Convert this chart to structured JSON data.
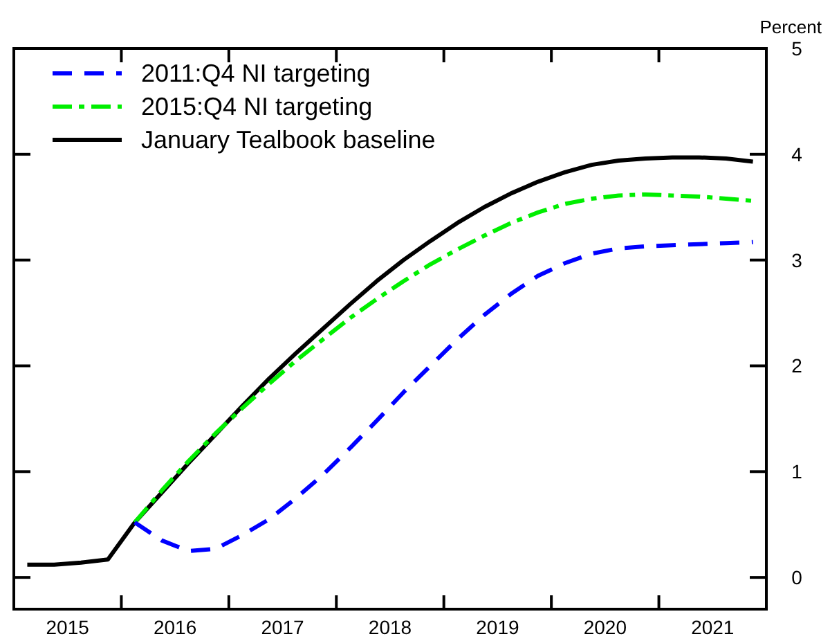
{
  "chart_data": {
    "type": "line",
    "ylabel": "Percent",
    "x": [
      2015.125,
      2015.375,
      2015.625,
      2015.875,
      2016.125,
      2016.375,
      2016.625,
      2016.875,
      2017.125,
      2017.375,
      2017.625,
      2017.875,
      2018.125,
      2018.375,
      2018.625,
      2018.875,
      2019.125,
      2019.375,
      2019.625,
      2019.875,
      2020.125,
      2020.375,
      2020.625,
      2020.875,
      2021.125,
      2021.375,
      2021.625,
      2021.875
    ],
    "series": [
      {
        "name": "2011:Q4 NI targeting",
        "color": "#0000ff",
        "line_style": "dashed",
        "values": [
          null,
          null,
          null,
          null,
          0.52,
          0.35,
          0.25,
          0.27,
          0.4,
          0.55,
          0.75,
          0.97,
          1.22,
          1.48,
          1.75,
          2.0,
          2.25,
          2.48,
          2.68,
          2.85,
          2.97,
          3.06,
          3.11,
          3.13,
          3.14,
          3.15,
          3.16,
          3.17
        ]
      },
      {
        "name": "2015:Q4 NI targeting",
        "color": "#00ee00",
        "line_style": "dashdot",
        "values": [
          null,
          null,
          null,
          null,
          0.52,
          0.82,
          1.1,
          1.36,
          1.6,
          1.83,
          2.05,
          2.25,
          2.45,
          2.63,
          2.8,
          2.96,
          3.1,
          3.23,
          3.35,
          3.45,
          3.53,
          3.58,
          3.61,
          3.62,
          3.61,
          3.6,
          3.58,
          3.56
        ]
      },
      {
        "name": "January Tealbook baseline",
        "color": "#000000",
        "line_style": "solid",
        "values": [
          0.12,
          0.12,
          0.14,
          0.17,
          0.52,
          0.8,
          1.08,
          1.35,
          1.62,
          1.88,
          2.12,
          2.35,
          2.58,
          2.8,
          3.0,
          3.18,
          3.35,
          3.5,
          3.63,
          3.74,
          3.83,
          3.9,
          3.94,
          3.96,
          3.97,
          3.97,
          3.96,
          3.93
        ]
      }
    ],
    "xlim": [
      2015,
      2022
    ],
    "xticks": [
      {
        "value": 2015,
        "label": null
      },
      {
        "value": 2015.5,
        "label": "2015"
      },
      {
        "value": 2016,
        "label": null
      },
      {
        "value": 2016.5,
        "label": "2016"
      },
      {
        "value": 2017,
        "label": null
      },
      {
        "value": 2017.5,
        "label": "2017"
      },
      {
        "value": 2018,
        "label": null
      },
      {
        "value": 2018.5,
        "label": "2018"
      },
      {
        "value": 2019,
        "label": null
      },
      {
        "value": 2019.5,
        "label": "2019"
      },
      {
        "value": 2020,
        "label": null
      },
      {
        "value": 2020.5,
        "label": "2020"
      },
      {
        "value": 2021,
        "label": null
      },
      {
        "value": 2021.5,
        "label": "2021"
      },
      {
        "value": 2022,
        "label": null
      }
    ],
    "ylim": [
      -0.3,
      5
    ],
    "yticks": [
      0,
      1,
      2,
      3,
      4,
      5
    ],
    "grid": false,
    "legend": "top left"
  }
}
